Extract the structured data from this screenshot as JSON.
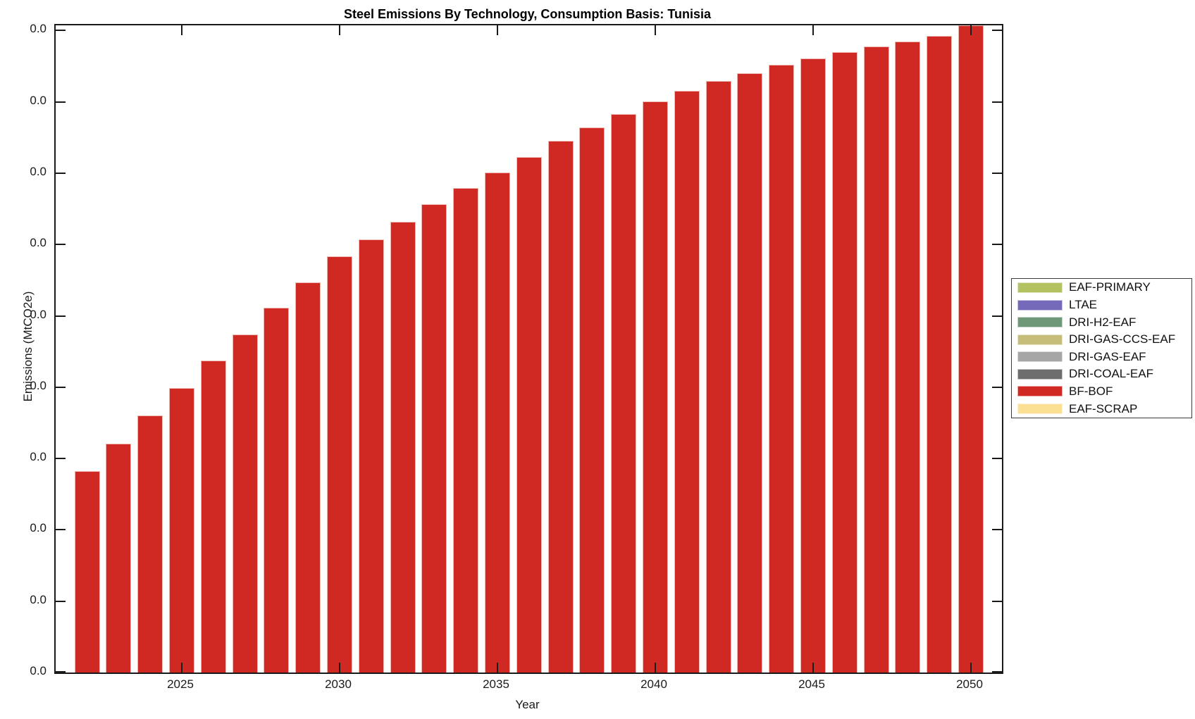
{
  "title": "Steel Emissions By Technology, Consumption Basis: Tunisia",
  "axes": {
    "xlabel": "Year",
    "ylabel": "Emissions (MtCO2e)",
    "x_tick_labels": [
      "2025",
      "2030",
      "2035",
      "2040",
      "2045",
      "2050"
    ],
    "y_tick_labels": [
      "0.0",
      "0.0",
      "0.0",
      "0.0",
      "0.0",
      "0.0",
      "0.0",
      "0.0",
      "0.0",
      "0.0"
    ],
    "tick_direction": "in",
    "box": "on",
    "grid": "off"
  },
  "legend": {
    "position": "outside-right",
    "entries": [
      {
        "label": "EAF-PRIMARY",
        "color": "#b5c262"
      },
      {
        "label": "LTAE",
        "color": "#7569ba"
      },
      {
        "label": "DRI-H2-EAF",
        "color": "#6f9879"
      },
      {
        "label": "DRI-GAS-CCS-EAF",
        "color": "#c6bd7a"
      },
      {
        "label": "DRI-GAS-EAF",
        "color": "#a6a6a6"
      },
      {
        "label": "DRI-COAL-EAF",
        "color": "#6e6e6e"
      },
      {
        "label": "BF-BOF",
        "color": "#d02823"
      },
      {
        "label": "EAF-SCRAP",
        "color": "#fbe093"
      }
    ]
  },
  "chart_data": {
    "type": "bar",
    "stacked": true,
    "title": "Steel Emissions By Technology, Consumption Basis: Tunisia",
    "xlabel": "Year",
    "ylabel": "Emissions (MtCO2e)",
    "x": [
      2022,
      2023,
      2024,
      2025,
      2026,
      2027,
      2028,
      2029,
      2030,
      2031,
      2032,
      2033,
      2034,
      2035,
      2036,
      2037,
      2038,
      2039,
      2040,
      2041,
      2042,
      2043,
      2044,
      2045,
      2046,
      2047,
      2048,
      2049,
      2050
    ],
    "x_tick_years": [
      2025,
      2030,
      2035,
      2040,
      2045,
      2050
    ],
    "y_unit_note": "All y tick labels render as 0.0; values below are in y-axis tick intervals (1.0 = spacing between adjacent ticks), estimated from bar heights",
    "ylim_tick_units": [
      0,
      9.07
    ],
    "series": [
      {
        "name": "BF-BOF",
        "color": "#d02823",
        "values_tick_units": [
          2.82,
          3.21,
          3.6,
          3.99,
          4.37,
          4.74,
          5.11,
          5.47,
          5.83,
          6.07,
          6.32,
          6.56,
          6.79,
          7.01,
          7.23,
          7.45,
          7.64,
          7.83,
          8.01,
          8.15,
          8.29,
          8.4,
          8.52,
          8.61,
          8.7,
          8.78,
          8.85,
          8.92,
          9.08
        ]
      }
    ],
    "legend_only_series_with_zero_visible_contribution": [
      "EAF-PRIMARY",
      "LTAE",
      "DRI-H2-EAF",
      "DRI-GAS-CCS-EAF",
      "DRI-GAS-EAF",
      "DRI-COAL-EAF",
      "EAF-SCRAP"
    ],
    "legend_position": "right-outside",
    "last_bar_clipped_at_top": true
  }
}
